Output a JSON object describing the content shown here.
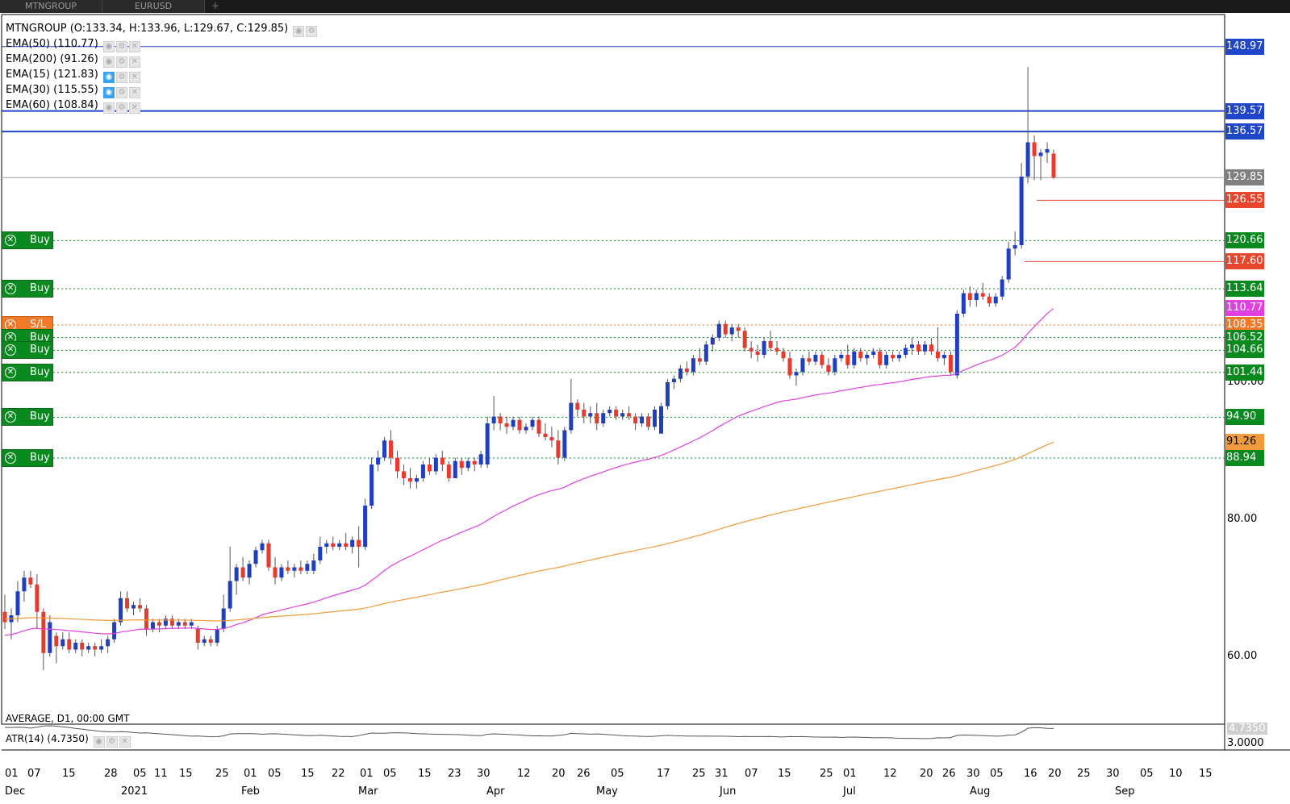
{
  "tabs": [
    {
      "label": "MTNGROUP"
    },
    {
      "label": "EURUSD"
    }
  ],
  "tab_plus": "+",
  "legend": {
    "ohlc": "MTNGROUP (O:133.34, H:133.96, L:129.67, C:129.85)",
    "indicators": [
      {
        "label": "EMA(50) (110.77)",
        "visible": false
      },
      {
        "label": "EMA(200) (91.26)",
        "visible": false
      },
      {
        "label": "EMA(15) (121.83)",
        "visible": true
      },
      {
        "label": "EMA(30) (115.55)",
        "visible": true
      },
      {
        "label": "EMA(60) (108.84)",
        "visible": false
      }
    ]
  },
  "sub_legend": {
    "avg": "AVERAGE, D1, 00:00 GMT",
    "atr": "ATR(14) (4.7350)"
  },
  "price_axis": [
    "100.00",
    "80.00",
    "60.00"
  ],
  "atr_axis": [
    "4.7350",
    "3.0000"
  ],
  "price_tags": [
    {
      "text": "148.97",
      "bg": "#1f45c8",
      "fg": "#ffffff"
    },
    {
      "text": "139.57",
      "bg": "#1f45c8",
      "fg": "#ffffff"
    },
    {
      "text": "136.57",
      "bg": "#1f45c8",
      "fg": "#ffffff"
    },
    {
      "text": "129.85",
      "bg": "#7f7f7f",
      "fg": "#ffffff"
    },
    {
      "text": "126.55",
      "bg": "#e8472e",
      "fg": "#ffffff"
    },
    {
      "text": "120.66",
      "bg": "#0a8a1e",
      "fg": "#ffffff"
    },
    {
      "text": "117.60",
      "bg": "#e8472e",
      "fg": "#ffffff"
    },
    {
      "text": "113.64",
      "bg": "#0a8a1e",
      "fg": "#ffffff"
    },
    {
      "text": "110.77",
      "bg": "#e040e0",
      "fg": "#ffffff"
    },
    {
      "text": "108.35",
      "bg": "#f07a2a",
      "fg": "#ffffff"
    },
    {
      "text": "106.52",
      "bg": "#0a8a1e",
      "fg": "#ffffff"
    },
    {
      "text": "104.66",
      "bg": "#0a8a1e",
      "fg": "#ffffff"
    },
    {
      "text": "101.44",
      "bg": "#0a8a1e",
      "fg": "#ffffff"
    },
    {
      "text": "94.90",
      "bg": "#0a8a1e",
      "fg": "#ffffff"
    },
    {
      "text": "91.26",
      "bg": "#f39a3a",
      "fg": "#000000"
    },
    {
      "text": "88.94",
      "bg": "#0a8a1e",
      "fg": "#ffffff"
    }
  ],
  "orders": [
    {
      "label": "Buy",
      "price": 120.66
    },
    {
      "label": "Buy",
      "price": 113.64
    },
    {
      "label": "S/L",
      "price": 108.35
    },
    {
      "label": "Buy",
      "price": 106.52
    },
    {
      "label": "Buy",
      "price": 104.66
    },
    {
      "label": "Buy",
      "price": 101.44
    },
    {
      "label": "Buy",
      "price": 94.9
    },
    {
      "label": "Buy",
      "price": 88.94
    }
  ],
  "x_ticks": [
    "01",
    "07",
    "15",
    "28",
    "05",
    "11",
    "15",
    "25",
    "01",
    "05",
    "15",
    "22",
    "01",
    "05",
    "15",
    "23",
    "30",
    "12",
    "20",
    "26",
    "05",
    "17",
    "25",
    "31",
    "07",
    "15",
    "25",
    "01",
    "12",
    "20",
    "26",
    "30",
    "05",
    "16",
    "20",
    "25",
    "30",
    "05",
    "10",
    "15"
  ],
  "x_months": [
    "Dec",
    "2021",
    "Feb",
    "Mar",
    "Apr",
    "May",
    "Jun",
    "Jul",
    "Aug",
    "Sep"
  ],
  "colors": {
    "bull": "#1f3fbf",
    "bear": "#e83a2e",
    "ema_fast": "#e040e0",
    "ema_slow": "#f39a3a",
    "hline_blue": "#1f45c8",
    "hline_red": "#e8472e",
    "order_green": "#0a8a1e",
    "sl_orange": "#f07a2a"
  },
  "chart_data": {
    "type": "candlestick",
    "symbol": "MTNGROUP",
    "last_close": 129.85,
    "candles": [
      {
        "o": 66.5,
        "h": 69.0,
        "l": 64.0,
        "c": 65.0
      },
      {
        "o": 65.0,
        "h": 67.0,
        "l": 62.5,
        "c": 66.0
      },
      {
        "o": 66.0,
        "h": 71.0,
        "l": 65.0,
        "c": 69.5
      },
      {
        "o": 69.5,
        "h": 72.5,
        "l": 68.0,
        "c": 71.5
      },
      {
        "o": 71.5,
        "h": 72.5,
        "l": 70.0,
        "c": 70.5
      },
      {
        "o": 70.5,
        "h": 72.0,
        "l": 64.0,
        "c": 66.5
      },
      {
        "o": 66.5,
        "h": 67.0,
        "l": 58.0,
        "c": 60.5
      },
      {
        "o": 60.5,
        "h": 66.0,
        "l": 60.0,
        "c": 65.0
      },
      {
        "o": 63.0,
        "h": 63.5,
        "l": 59.0,
        "c": 61.5
      },
      {
        "o": 61.5,
        "h": 63.5,
        "l": 61.0,
        "c": 62.5
      },
      {
        "o": 62.5,
        "h": 63.5,
        "l": 60.5,
        "c": 61.0
      },
      {
        "o": 61.0,
        "h": 62.5,
        "l": 60.5,
        "c": 62.0
      },
      {
        "o": 62.0,
        "h": 62.5,
        "l": 60.0,
        "c": 61.0
      },
      {
        "o": 61.0,
        "h": 62.0,
        "l": 60.5,
        "c": 61.5
      },
      {
        "o": 61.5,
        "h": 62.0,
        "l": 60.0,
        "c": 61.0
      },
      {
        "o": 61.0,
        "h": 62.5,
        "l": 60.5,
        "c": 61.5
      },
      {
        "o": 61.5,
        "h": 63.0,
        "l": 60.5,
        "c": 62.5
      },
      {
        "o": 62.5,
        "h": 65.5,
        "l": 62.0,
        "c": 65.0
      },
      {
        "o": 65.0,
        "h": 69.5,
        "l": 64.5,
        "c": 68.5
      },
      {
        "o": 68.5,
        "h": 69.5,
        "l": 66.5,
        "c": 67.0
      },
      {
        "o": 67.0,
        "h": 68.0,
        "l": 66.0,
        "c": 67.5
      },
      {
        "o": 67.5,
        "h": 68.5,
        "l": 66.5,
        "c": 67.0
      },
      {
        "o": 67.0,
        "h": 67.5,
        "l": 63.0,
        "c": 64.0
      },
      {
        "o": 64.0,
        "h": 65.5,
        "l": 63.5,
        "c": 65.0
      },
      {
        "o": 65.0,
        "h": 65.5,
        "l": 63.5,
        "c": 64.5
      },
      {
        "o": 64.5,
        "h": 66.0,
        "l": 64.0,
        "c": 65.5
      },
      {
        "o": 65.5,
        "h": 66.0,
        "l": 64.0,
        "c": 64.5
      },
      {
        "o": 64.5,
        "h": 65.5,
        "l": 64.0,
        "c": 65.0
      },
      {
        "o": 65.0,
        "h": 65.5,
        "l": 64.0,
        "c": 64.5
      },
      {
        "o": 64.5,
        "h": 65.5,
        "l": 64.0,
        "c": 65.0
      },
      {
        "o": 64.0,
        "h": 64.5,
        "l": 61.0,
        "c": 62.0
      },
      {
        "o": 62.0,
        "h": 63.0,
        "l": 61.5,
        "c": 62.5
      },
      {
        "o": 62.5,
        "h": 63.0,
        "l": 61.5,
        "c": 62.0
      },
      {
        "o": 62.0,
        "h": 64.5,
        "l": 61.5,
        "c": 64.0
      },
      {
        "o": 64.0,
        "h": 69.0,
        "l": 63.5,
        "c": 67.0
      },
      {
        "o": 67.0,
        "h": 76.0,
        "l": 66.5,
        "c": 71.0
      },
      {
        "o": 71.0,
        "h": 73.5,
        "l": 69.0,
        "c": 73.0
      },
      {
        "o": 73.0,
        "h": 74.5,
        "l": 71.0,
        "c": 71.5
      },
      {
        "o": 71.5,
        "h": 74.0,
        "l": 70.5,
        "c": 73.5
      },
      {
        "o": 73.5,
        "h": 76.0,
        "l": 73.0,
        "c": 75.5
      },
      {
        "o": 75.5,
        "h": 77.0,
        "l": 75.0,
        "c": 76.5
      },
      {
        "o": 76.5,
        "h": 77.0,
        "l": 72.5,
        "c": 73.0
      },
      {
        "o": 73.0,
        "h": 74.5,
        "l": 70.5,
        "c": 71.5
      },
      {
        "o": 71.5,
        "h": 73.5,
        "l": 71.0,
        "c": 73.0
      },
      {
        "o": 73.0,
        "h": 74.0,
        "l": 72.0,
        "c": 72.5
      },
      {
        "o": 72.5,
        "h": 73.5,
        "l": 71.5,
        "c": 73.0
      },
      {
        "o": 73.0,
        "h": 74.0,
        "l": 72.0,
        "c": 72.5
      },
      {
        "o": 72.5,
        "h": 74.0,
        "l": 72.0,
        "c": 73.5
      },
      {
        "o": 72.5,
        "h": 75.0,
        "l": 72.0,
        "c": 74.0
      },
      {
        "o": 74.0,
        "h": 77.5,
        "l": 73.5,
        "c": 76.0
      },
      {
        "o": 76.0,
        "h": 77.0,
        "l": 75.0,
        "c": 76.5
      },
      {
        "o": 76.5,
        "h": 77.5,
        "l": 75.5,
        "c": 76.0
      },
      {
        "o": 76.0,
        "h": 77.0,
        "l": 75.5,
        "c": 76.5
      },
      {
        "o": 76.5,
        "h": 78.0,
        "l": 75.5,
        "c": 76.0
      },
      {
        "o": 76.0,
        "h": 77.5,
        "l": 75.0,
        "c": 77.0
      },
      {
        "o": 77.0,
        "h": 79.0,
        "l": 73.0,
        "c": 76.0
      },
      {
        "o": 76.0,
        "h": 83.0,
        "l": 75.5,
        "c": 82.0
      },
      {
        "o": 82.0,
        "h": 89.0,
        "l": 81.5,
        "c": 88.0
      },
      {
        "o": 88.0,
        "h": 90.0,
        "l": 87.0,
        "c": 89.0
      },
      {
        "o": 89.0,
        "h": 92.0,
        "l": 88.5,
        "c": 91.5
      },
      {
        "o": 91.5,
        "h": 93.0,
        "l": 88.0,
        "c": 89.0
      },
      {
        "o": 89.0,
        "h": 90.0,
        "l": 86.0,
        "c": 87.0
      },
      {
        "o": 87.0,
        "h": 88.0,
        "l": 85.0,
        "c": 86.0
      },
      {
        "o": 86.0,
        "h": 87.5,
        "l": 84.5,
        "c": 85.5
      },
      {
        "o": 85.5,
        "h": 86.5,
        "l": 84.5,
        "c": 86.0
      },
      {
        "o": 86.0,
        "h": 88.5,
        "l": 85.5,
        "c": 88.0
      },
      {
        "o": 88.0,
        "h": 89.0,
        "l": 86.5,
        "c": 87.0
      },
      {
        "o": 87.0,
        "h": 89.5,
        "l": 86.5,
        "c": 89.0
      },
      {
        "o": 89.0,
        "h": 90.0,
        "l": 87.0,
        "c": 88.0
      },
      {
        "o": 88.0,
        "h": 88.5,
        "l": 85.5,
        "c": 86.0
      },
      {
        "o": 86.0,
        "h": 89.0,
        "l": 86.0,
        "c": 88.5
      },
      {
        "o": 88.5,
        "h": 89.0,
        "l": 86.5,
        "c": 87.5
      },
      {
        "o": 87.5,
        "h": 89.0,
        "l": 87.0,
        "c": 88.5
      },
      {
        "o": 88.5,
        "h": 89.0,
        "l": 87.0,
        "c": 88.0
      },
      {
        "o": 88.0,
        "h": 90.0,
        "l": 87.5,
        "c": 89.5
      },
      {
        "o": 88.0,
        "h": 95.0,
        "l": 87.5,
        "c": 94.0
      },
      {
        "o": 94.0,
        "h": 98.0,
        "l": 93.0,
        "c": 95.0
      },
      {
        "o": 95.0,
        "h": 95.5,
        "l": 93.0,
        "c": 94.0
      },
      {
        "o": 94.0,
        "h": 95.0,
        "l": 92.5,
        "c": 93.5
      },
      {
        "o": 93.5,
        "h": 95.0,
        "l": 93.0,
        "c": 94.5
      },
      {
        "o": 94.5,
        "h": 95.0,
        "l": 92.5,
        "c": 93.0
      },
      {
        "o": 93.0,
        "h": 94.0,
        "l": 92.5,
        "c": 93.5
      },
      {
        "o": 93.5,
        "h": 95.0,
        "l": 93.0,
        "c": 94.5
      },
      {
        "o": 94.5,
        "h": 95.0,
        "l": 92.0,
        "c": 92.5
      },
      {
        "o": 92.5,
        "h": 94.0,
        "l": 91.5,
        "c": 92.0
      },
      {
        "o": 92.0,
        "h": 93.5,
        "l": 90.5,
        "c": 91.5
      },
      {
        "o": 91.5,
        "h": 93.0,
        "l": 88.0,
        "c": 89.0
      },
      {
        "o": 89.0,
        "h": 93.5,
        "l": 88.5,
        "c": 93.0
      },
      {
        "o": 93.0,
        "h": 100.5,
        "l": 92.5,
        "c": 97.0
      },
      {
        "o": 97.0,
        "h": 97.5,
        "l": 95.0,
        "c": 96.0
      },
      {
        "o": 96.0,
        "h": 97.0,
        "l": 94.0,
        "c": 95.0
      },
      {
        "o": 95.0,
        "h": 96.5,
        "l": 94.0,
        "c": 95.5
      },
      {
        "o": 95.5,
        "h": 97.0,
        "l": 93.0,
        "c": 94.0
      },
      {
        "o": 94.0,
        "h": 96.0,
        "l": 93.5,
        "c": 95.5
      },
      {
        "o": 95.5,
        "h": 96.5,
        "l": 95.0,
        "c": 96.0
      },
      {
        "o": 96.0,
        "h": 96.5,
        "l": 94.5,
        "c": 95.0
      },
      {
        "o": 95.0,
        "h": 96.0,
        "l": 94.5,
        "c": 95.5
      },
      {
        "o": 95.5,
        "h": 96.5,
        "l": 94.5,
        "c": 95.0
      },
      {
        "o": 95.0,
        "h": 95.5,
        "l": 93.0,
        "c": 94.0
      },
      {
        "o": 94.0,
        "h": 95.5,
        "l": 93.5,
        "c": 95.0
      },
      {
        "o": 95.0,
        "h": 95.5,
        "l": 93.0,
        "c": 93.5
      },
      {
        "o": 93.5,
        "h": 96.5,
        "l": 93.0,
        "c": 96.0
      },
      {
        "o": 92.5,
        "h": 97.0,
        "l": 92.5,
        "c": 96.5
      },
      {
        "o": 96.5,
        "h": 100.5,
        "l": 96.0,
        "c": 100.0
      },
      {
        "o": 100.0,
        "h": 101.0,
        "l": 99.0,
        "c": 100.5
      },
      {
        "o": 100.5,
        "h": 102.5,
        "l": 100.0,
        "c": 102.0
      },
      {
        "o": 102.0,
        "h": 103.0,
        "l": 101.0,
        "c": 101.5
      },
      {
        "o": 101.5,
        "h": 104.0,
        "l": 101.0,
        "c": 103.5
      },
      {
        "o": 103.5,
        "h": 105.0,
        "l": 102.5,
        "c": 103.0
      },
      {
        "o": 103.0,
        "h": 106.0,
        "l": 102.5,
        "c": 105.5
      },
      {
        "o": 105.5,
        "h": 107.0,
        "l": 104.5,
        "c": 106.5
      },
      {
        "o": 106.5,
        "h": 109.0,
        "l": 106.0,
        "c": 108.5
      },
      {
        "o": 108.5,
        "h": 109.0,
        "l": 106.5,
        "c": 107.0
      },
      {
        "o": 107.0,
        "h": 108.5,
        "l": 106.0,
        "c": 108.0
      },
      {
        "o": 108.0,
        "h": 108.5,
        "l": 106.5,
        "c": 107.5
      },
      {
        "o": 107.5,
        "h": 108.0,
        "l": 104.5,
        "c": 105.0
      },
      {
        "o": 105.0,
        "h": 106.0,
        "l": 103.5,
        "c": 104.5
      },
      {
        "o": 104.5,
        "h": 105.5,
        "l": 103.0,
        "c": 104.0
      },
      {
        "o": 104.0,
        "h": 106.5,
        "l": 103.5,
        "c": 106.0
      },
      {
        "o": 106.0,
        "h": 107.5,
        "l": 104.5,
        "c": 105.0
      },
      {
        "o": 105.0,
        "h": 106.0,
        "l": 104.0,
        "c": 104.5
      },
      {
        "o": 104.5,
        "h": 105.0,
        "l": 103.0,
        "c": 103.5
      },
      {
        "o": 103.5,
        "h": 104.5,
        "l": 100.5,
        "c": 101.0
      },
      {
        "o": 101.0,
        "h": 102.0,
        "l": 99.5,
        "c": 101.5
      },
      {
        "o": 101.5,
        "h": 104.0,
        "l": 101.0,
        "c": 103.5
      },
      {
        "o": 103.5,
        "h": 104.5,
        "l": 102.5,
        "c": 103.0
      },
      {
        "o": 103.0,
        "h": 104.5,
        "l": 102.5,
        "c": 104.0
      },
      {
        "o": 104.0,
        "h": 104.5,
        "l": 102.0,
        "c": 102.5
      },
      {
        "o": 102.5,
        "h": 103.5,
        "l": 101.0,
        "c": 101.5
      },
      {
        "o": 101.5,
        "h": 104.0,
        "l": 101.0,
        "c": 103.5
      },
      {
        "o": 103.5,
        "h": 104.5,
        "l": 103.0,
        "c": 104.0
      },
      {
        "o": 104.0,
        "h": 105.5,
        "l": 102.0,
        "c": 102.5
      },
      {
        "o": 102.5,
        "h": 105.0,
        "l": 102.0,
        "c": 104.5
      },
      {
        "o": 104.5,
        "h": 105.0,
        "l": 103.0,
        "c": 103.5
      },
      {
        "o": 103.5,
        "h": 104.5,
        "l": 102.5,
        "c": 104.0
      },
      {
        "o": 104.0,
        "h": 105.0,
        "l": 103.5,
        "c": 104.5
      },
      {
        "o": 104.5,
        "h": 105.0,
        "l": 102.0,
        "c": 102.5
      },
      {
        "o": 102.5,
        "h": 104.5,
        "l": 102.0,
        "c": 104.0
      },
      {
        "o": 104.0,
        "h": 104.5,
        "l": 103.0,
        "c": 103.5
      },
      {
        "o": 103.5,
        "h": 104.5,
        "l": 103.0,
        "c": 104.0
      },
      {
        "o": 104.0,
        "h": 105.5,
        "l": 103.5,
        "c": 105.0
      },
      {
        "o": 105.0,
        "h": 106.5,
        "l": 104.0,
        "c": 105.5
      },
      {
        "o": 105.5,
        "h": 106.0,
        "l": 104.0,
        "c": 104.5
      },
      {
        "o": 104.5,
        "h": 106.0,
        "l": 104.0,
        "c": 105.5
      },
      {
        "o": 105.5,
        "h": 106.5,
        "l": 104.0,
        "c": 104.5
      },
      {
        "o": 104.5,
        "h": 108.0,
        "l": 103.0,
        "c": 103.5
      },
      {
        "o": 103.5,
        "h": 104.5,
        "l": 102.5,
        "c": 104.0
      },
      {
        "o": 104.0,
        "h": 104.5,
        "l": 101.0,
        "c": 101.5
      },
      {
        "o": 101.0,
        "h": 110.5,
        "l": 100.5,
        "c": 110.0
      },
      {
        "o": 110.0,
        "h": 113.5,
        "l": 109.5,
        "c": 113.0
      },
      {
        "o": 113.0,
        "h": 114.0,
        "l": 111.0,
        "c": 112.0
      },
      {
        "o": 112.0,
        "h": 113.5,
        "l": 111.0,
        "c": 113.0
      },
      {
        "o": 113.0,
        "h": 114.5,
        "l": 112.0,
        "c": 112.5
      },
      {
        "o": 112.5,
        "h": 113.0,
        "l": 111.0,
        "c": 111.5
      },
      {
        "o": 111.5,
        "h": 113.0,
        "l": 111.0,
        "c": 112.5
      },
      {
        "o": 112.5,
        "h": 115.5,
        "l": 112.0,
        "c": 115.0
      },
      {
        "o": 115.0,
        "h": 120.5,
        "l": 114.5,
        "c": 119.5
      },
      {
        "o": 119.5,
        "h": 122.0,
        "l": 118.5,
        "c": 120.0
      },
      {
        "o": 120.0,
        "h": 132.0,
        "l": 119.5,
        "c": 130.0
      },
      {
        "o": 130.0,
        "h": 146.0,
        "l": 129.0,
        "c": 135.0
      },
      {
        "o": 135.0,
        "h": 136.0,
        "l": 129.5,
        "c": 133.0
      },
      {
        "o": 133.0,
        "h": 134.0,
        "l": 129.5,
        "c": 133.5
      },
      {
        "o": 133.5,
        "h": 135.0,
        "l": 132.0,
        "c": 134.0
      },
      {
        "o": 133.34,
        "h": 133.96,
        "l": 129.67,
        "c": 129.85
      }
    ],
    "ema50": {
      "start": 63.0,
      "end": 110.77
    },
    "ema200": {
      "start": 65.5,
      "end": 91.26
    },
    "atr": {
      "last": 4.735
    }
  }
}
